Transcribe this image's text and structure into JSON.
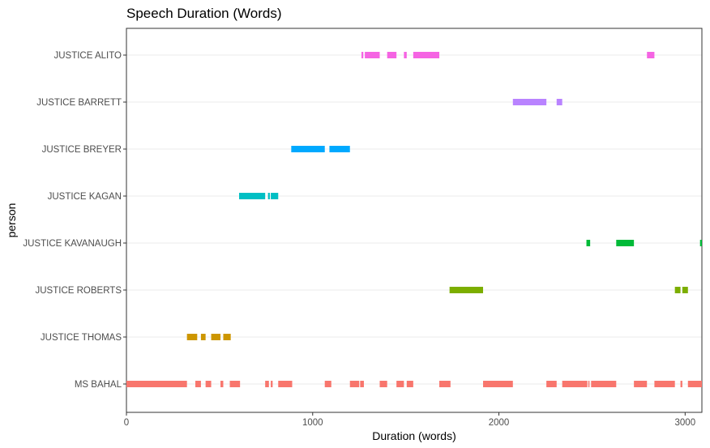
{
  "chart_data": {
    "type": "timeline",
    "title": "Speech Duration (Words)",
    "xlabel": "Duration (words)",
    "ylabel": "person",
    "xlim": [
      0,
      3090
    ],
    "x_ticks": [
      0,
      1000,
      2000,
      3000
    ],
    "x_tick_labels": [
      "0",
      "1000",
      "2000",
      "3000"
    ],
    "grid": "horizontal major lines only",
    "legend": "none",
    "categories": [
      "JUSTICE ALITO",
      "JUSTICE BARRETT",
      "JUSTICE BREYER",
      "JUSTICE KAGAN",
      "JUSTICE KAVANAUGH",
      "JUSTICE ROBERTS",
      "JUSTICE THOMAS",
      "MS BAHAL"
    ],
    "series": [
      {
        "name": "JUSTICE ALITO",
        "color": "#F564E3",
        "segments": [
          [
            1262,
            1272
          ],
          [
            1280,
            1360
          ],
          [
            1400,
            1450
          ],
          [
            1490,
            1505
          ],
          [
            1540,
            1680
          ],
          [
            2795,
            2835
          ]
        ]
      },
      {
        "name": "JUSTICE BARRETT",
        "color": "#B983FF",
        "segments": [
          [
            2075,
            2255
          ],
          [
            2310,
            2340
          ]
        ]
      },
      {
        "name": "JUSTICE BREYER",
        "color": "#00A9FF",
        "segments": [
          [
            885,
            1065
          ],
          [
            1090,
            1200
          ]
        ]
      },
      {
        "name": "JUSTICE KAGAN",
        "color": "#00BFC4",
        "segments": [
          [
            605,
            745
          ],
          [
            760,
            770
          ],
          [
            775,
            815
          ]
        ]
      },
      {
        "name": "JUSTICE KAVANAUGH",
        "color": "#00BA38",
        "segments": [
          [
            2470,
            2490
          ],
          [
            2630,
            2725
          ],
          [
            3080,
            3090
          ]
        ]
      },
      {
        "name": "JUSTICE ROBERTS",
        "color": "#7CAE00",
        "segments": [
          [
            1735,
            1915
          ],
          [
            2945,
            2975
          ],
          [
            2985,
            3015
          ]
        ]
      },
      {
        "name": "JUSTICE THOMAS",
        "color": "#CD9600",
        "segments": [
          [
            325,
            380
          ],
          [
            400,
            425
          ],
          [
            455,
            505
          ],
          [
            520,
            560
          ]
        ]
      },
      {
        "name": "MS BAHAL",
        "color": "#F8766D",
        "segments": [
          [
            0,
            325
          ],
          [
            370,
            400
          ],
          [
            425,
            455
          ],
          [
            505,
            520
          ],
          [
            555,
            610
          ],
          [
            745,
            765
          ],
          [
            775,
            785
          ],
          [
            815,
            890
          ],
          [
            1065,
            1100
          ],
          [
            1200,
            1250
          ],
          [
            1255,
            1275
          ],
          [
            1360,
            1400
          ],
          [
            1450,
            1490
          ],
          [
            1505,
            1540
          ],
          [
            1680,
            1740
          ],
          [
            1915,
            2075
          ],
          [
            2255,
            2310
          ],
          [
            2340,
            2475
          ],
          [
            2480,
            2485
          ],
          [
            2495,
            2630
          ],
          [
            2725,
            2795
          ],
          [
            2835,
            2945
          ],
          [
            2975,
            2985
          ],
          [
            3015,
            3090
          ]
        ]
      }
    ]
  }
}
